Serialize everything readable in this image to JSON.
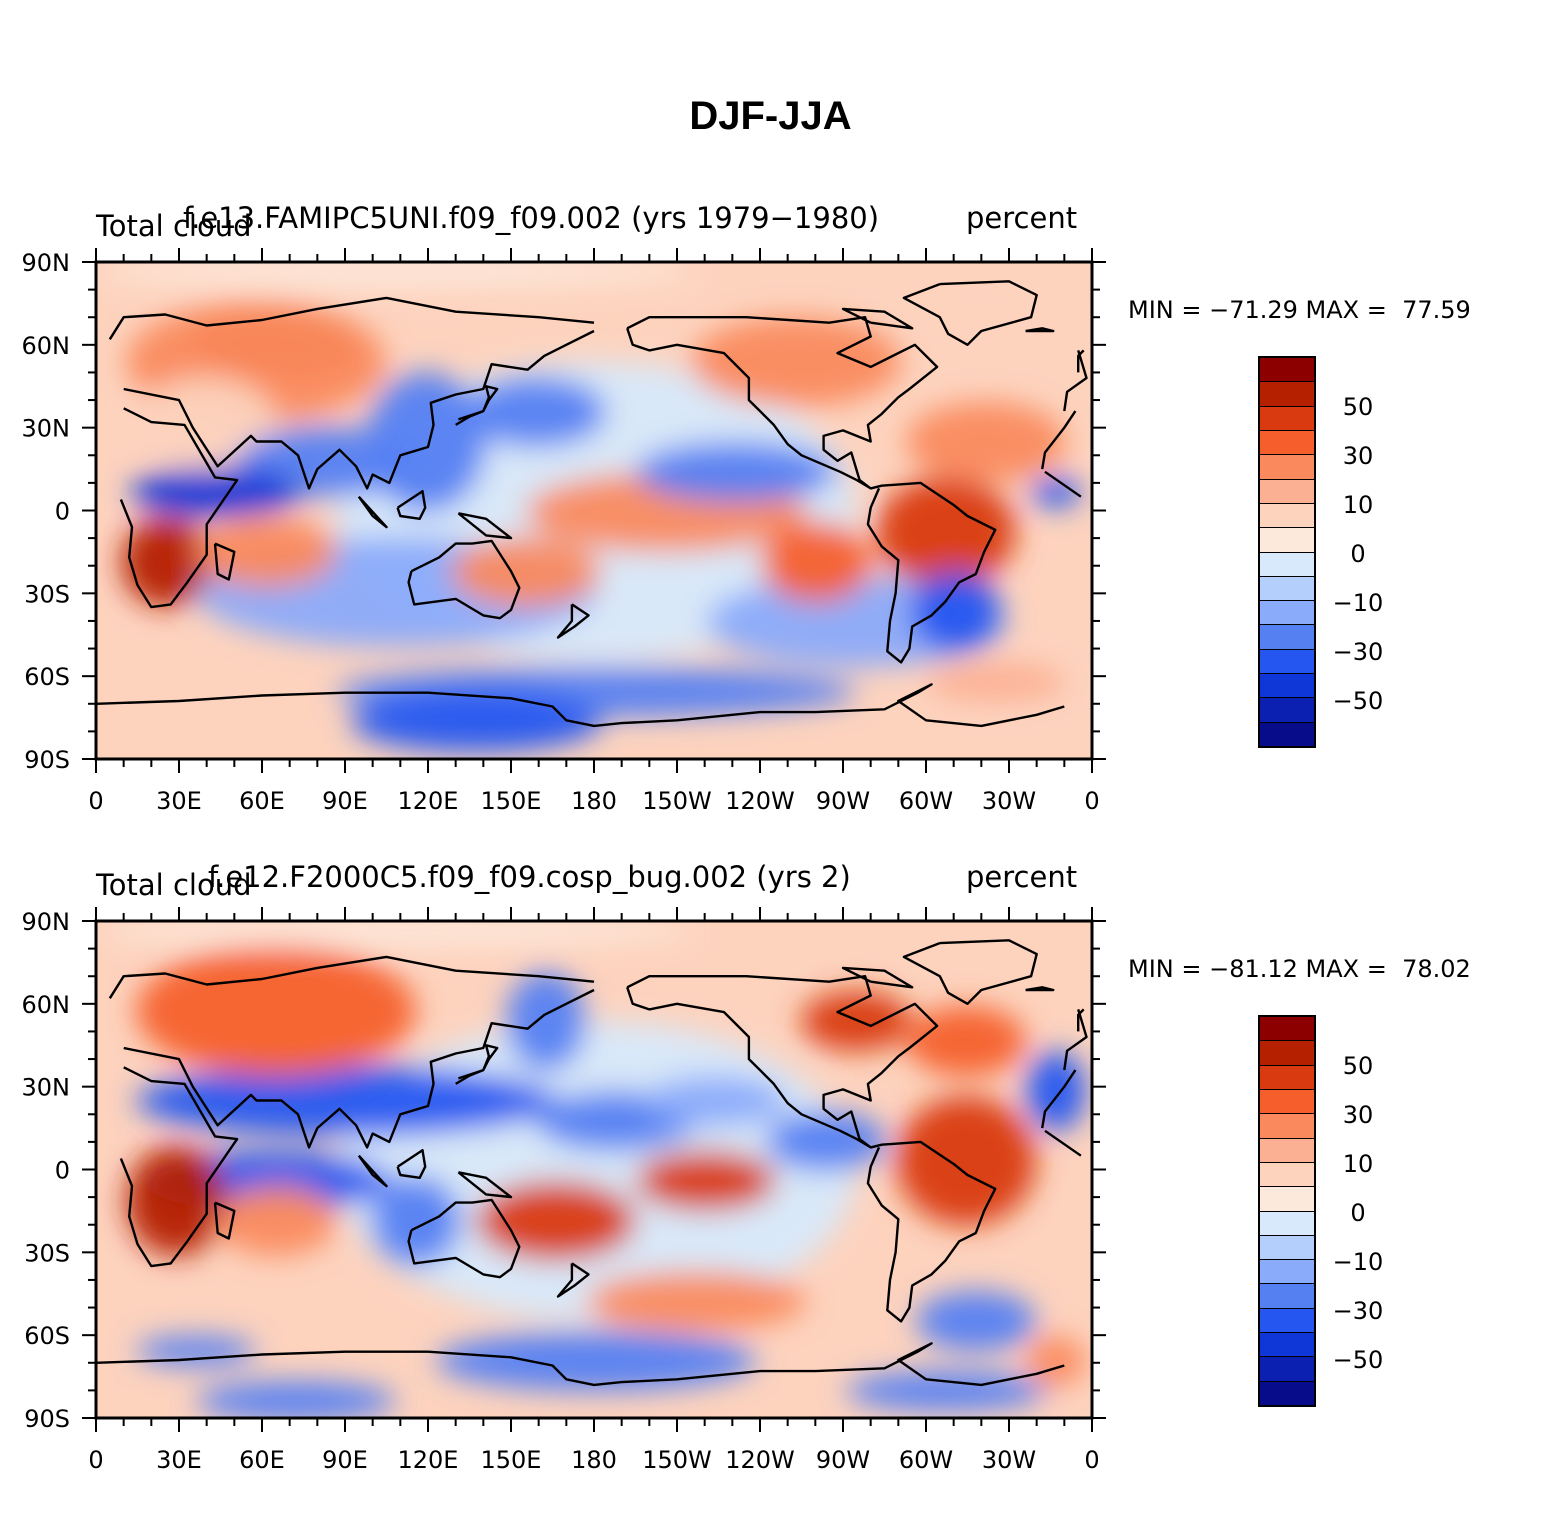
{
  "title": "DJF-JJA",
  "panels": [
    {
      "left_label": "Total cloud",
      "center_label": "f.e13.FAMIPC5UNI.f09_f09.002 (yrs 1979−1980)",
      "right_label": "percent",
      "stats": "MIN = −71.29 MAX =  77.59"
    },
    {
      "left_label": "Total cloud",
      "center_label": "f.e12.F2000C5.f09_f09.cosp_bug.002 (yrs 2)",
      "right_label": "percent",
      "stats": "MIN = −81.12 MAX =  78.02"
    }
  ],
  "lat_labels": [
    "90N",
    "60N",
    "30N",
    "0",
    "30S",
    "60S",
    "90S"
  ],
  "lon_labels": [
    "0",
    "30E",
    "60E",
    "90E",
    "120E",
    "150E",
    "180",
    "150W",
    "120W",
    "90W",
    "60W",
    "30W",
    "0"
  ],
  "colorbar": {
    "colors": [
      "#8c0000",
      "#b52000",
      "#d93a10",
      "#f65f2c",
      "#fa8a5e",
      "#fcb093",
      "#fdd3be",
      "#fde9dc",
      "#d7e9fb",
      "#b5cffc",
      "#8aaafa",
      "#5580f2",
      "#2556f0",
      "#0f37d8",
      "#0b20b0",
      "#060c8a"
    ],
    "labels": [
      "50",
      "30",
      "10",
      "0",
      "−10",
      "−30",
      "−50"
    ]
  }
}
